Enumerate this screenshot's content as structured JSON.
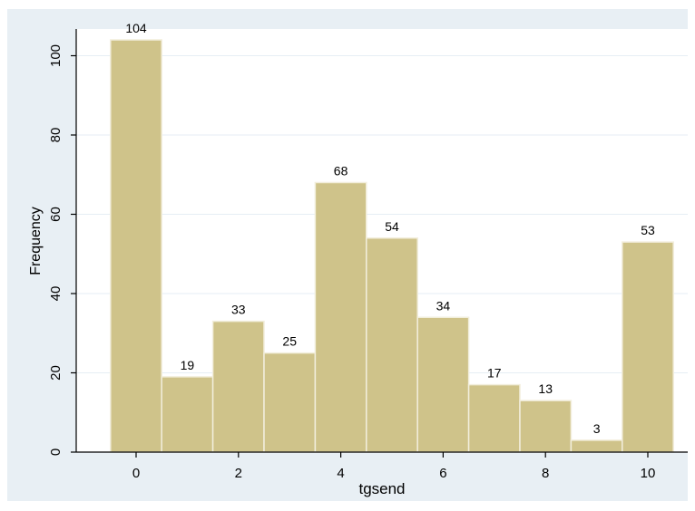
{
  "chart_data": {
    "type": "bar",
    "categories": [
      0,
      1,
      2,
      3,
      4,
      5,
      6,
      7,
      8,
      9,
      10
    ],
    "values": [
      104,
      19,
      33,
      25,
      68,
      54,
      34,
      17,
      13,
      3,
      53
    ],
    "data_labels": [
      "104",
      "19",
      "33",
      "25",
      "68",
      "54",
      "34",
      "17",
      "13",
      "3",
      "53"
    ],
    "title": "",
    "xlabel": "tgsend",
    "ylabel": "Frequency",
    "xlim": [
      -0.5,
      10.5
    ],
    "ylim": [
      0,
      104
    ],
    "xticks": [
      "0",
      "2",
      "4",
      "6",
      "8",
      "10"
    ],
    "yticks": [
      "0",
      "20",
      "40",
      "60",
      "80",
      "100"
    ],
    "grid": true,
    "colors": {
      "bar_fill": "#cfc38a",
      "bar_stroke": "#f2eedc",
      "outer_background": "#e8eff4",
      "plot_background": "#ffffff",
      "gridline": "#e6eef4",
      "axis": "#000000"
    }
  }
}
